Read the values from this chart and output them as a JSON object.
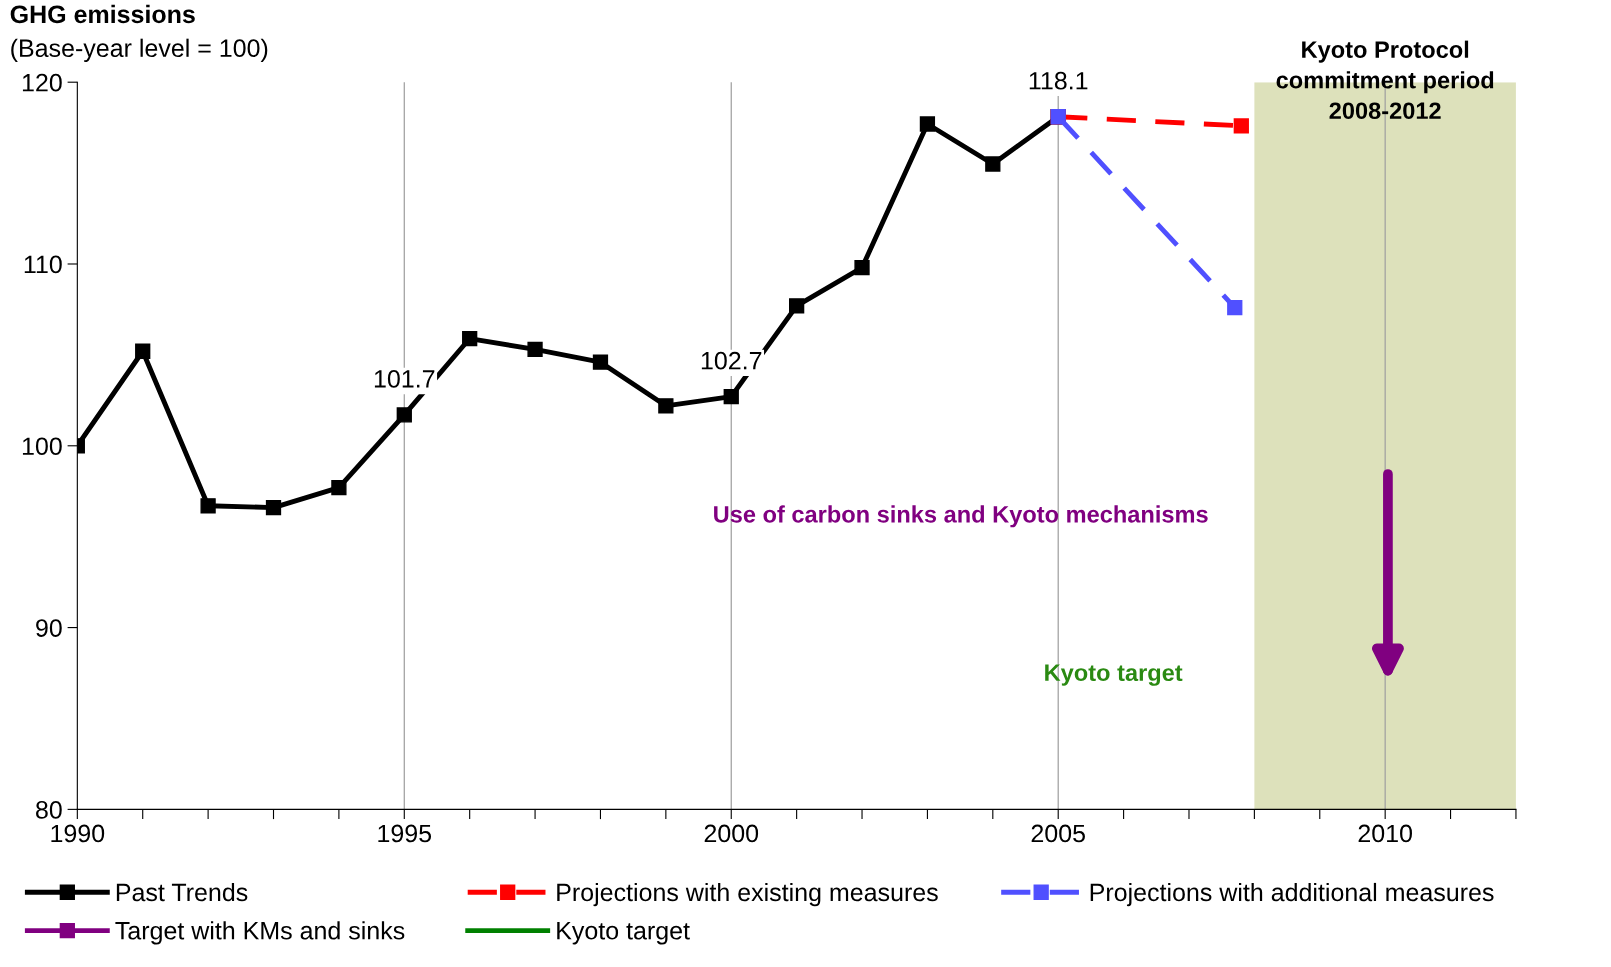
{
  "chart_data": {
    "type": "line",
    "title": "GHG emissions",
    "ylabel": "(Base-year level = 100)",
    "xlim": [
      1990,
      2012
    ],
    "xticks": [
      1990,
      {
        "value": 1991,
        "label": null
      },
      {
        "value": 1992,
        "label": null
      },
      {
        "value": 1993,
        "label": null
      },
      {
        "value": 1994,
        "label": null
      },
      1995,
      {
        "value": 1996,
        "label": null
      },
      {
        "value": 1997,
        "label": null
      },
      {
        "value": 1998,
        "label": null
      },
      {
        "value": 1999,
        "label": null
      },
      2000,
      {
        "value": 2001,
        "label": null
      },
      {
        "value": 2002,
        "label": null
      },
      {
        "value": 2003,
        "label": null
      },
      {
        "value": 2004,
        "label": null
      },
      2005,
      {
        "value": 2006,
        "label": null
      },
      {
        "value": 2007,
        "label": null
      },
      {
        "value": 2008,
        "label": null
      },
      {
        "value": 2009,
        "label": null
      },
      2010,
      {
        "value": 2011,
        "label": null
      },
      {
        "value": 2012,
        "label": null
      }
    ],
    "ylim": [
      80,
      120
    ],
    "yticks": [
      80,
      90,
      100,
      110,
      120
    ],
    "grid": false,
    "legend": "bottom",
    "series": [
      {
        "name": "Past Trends",
        "color": "#000000",
        "marker": "square",
        "line_style": "solid",
        "x": [
          1990,
          1991,
          1992,
          1993,
          1994,
          1995,
          1996,
          1997,
          1998,
          1999,
          2000,
          2001,
          2002,
          2003,
          2004,
          2005
        ],
        "values": [
          100.0,
          105.2,
          96.7,
          96.6,
          97.7,
          101.7,
          105.9,
          105.3,
          104.6,
          102.2,
          102.7,
          107.7,
          109.8,
          117.7,
          115.5,
          118.1
        ],
        "value_labels": [
          null,
          null,
          null,
          null,
          null,
          "101.7",
          null,
          null,
          null,
          null,
          "102.7",
          null,
          null,
          null,
          null,
          "118.1"
        ]
      },
      {
        "name": "Projections with existing measures",
        "color": "#ff0000",
        "marker": "square",
        "line_style": "dashed",
        "x": [
          2005,
          2007.8
        ],
        "values": [
          118.1,
          117.6
        ]
      },
      {
        "name": "Projections with additional measures",
        "color": "#5050ff",
        "marker": "square",
        "line_style": "dashed",
        "x": [
          2005,
          2007.7
        ],
        "values": [
          118.1,
          107.6
        ]
      },
      {
        "name": "Target with KMs and sinks",
        "color": "#800080",
        "marker": "square",
        "line_style": "solid"
      },
      {
        "name": "Kyoto target",
        "color": "#008000",
        "marker": "none",
        "line_style": "solid"
      }
    ],
    "ref_lines": [
      {
        "axis": "x",
        "value": 1995,
        "color": "#a0a0a0"
      },
      {
        "axis": "x",
        "value": 2000,
        "color": "#a0a0a0"
      },
      {
        "axis": "x",
        "value": 2005,
        "color": "#a0a0a0"
      },
      {
        "axis": "x",
        "value": 2010,
        "color": "#a0a0a0"
      }
    ],
    "bands": [
      {
        "axis": "x",
        "from": 2008,
        "to": 2012,
        "label": "Kyoto Protocol\ncommitment period\n2008-2012",
        "color": "#dde1bb"
      }
    ],
    "annotations": [
      "Use of carbon sinks and Kyoto mechanisms",
      "Kyoto target"
    ]
  }
}
